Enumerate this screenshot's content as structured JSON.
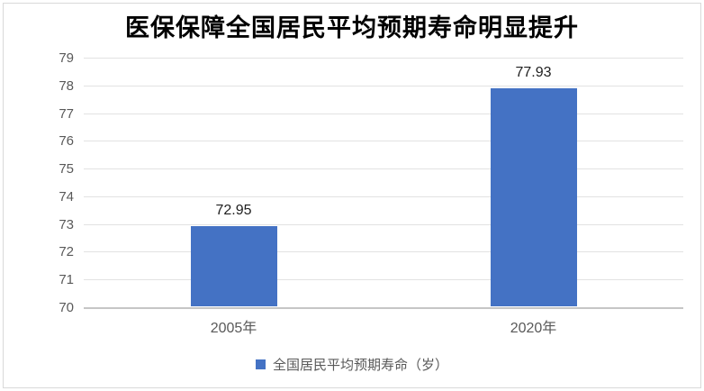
{
  "chart_data": {
    "type": "bar",
    "title": "医保保障全国居民平均预期寿命明显提升",
    "categories": [
      "2005年",
      "2020年"
    ],
    "series": [
      {
        "name": "全国居民平均预期寿命（岁）",
        "values": [
          72.95,
          77.93
        ]
      }
    ],
    "data_labels": [
      "72.95",
      "77.93"
    ],
    "xlabel": "",
    "ylabel": "",
    "ylim": [
      70,
      79
    ],
    "yticks": [
      70,
      71,
      72,
      73,
      74,
      75,
      76,
      77,
      78,
      79
    ],
    "grid": true,
    "legend_position": "bottom",
    "colors": {
      "bar": "#4472C4",
      "gridline": "#E2E2E2",
      "axis_line": "#C6C6C6",
      "axis_text": "#595959",
      "data_label": "#1F1F1F",
      "title_text": "#000000",
      "frame_border": "#D9D9D9"
    }
  }
}
